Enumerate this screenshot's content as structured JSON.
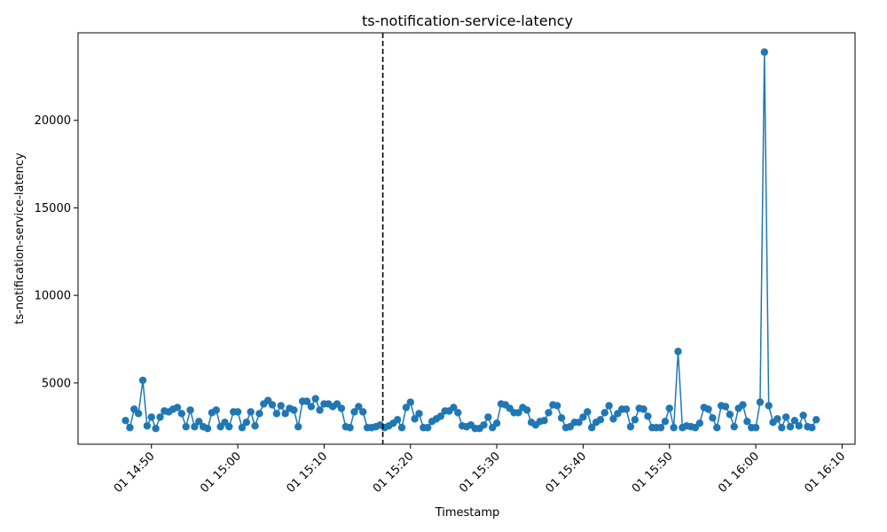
{
  "chart_data": {
    "type": "line",
    "title": "ts-notification-service-latency",
    "xlabel": "Timestamp",
    "ylabel": "ts-notification-service-latency",
    "ylim": [
      1500,
      25000
    ],
    "xlim": [
      "14:41.5",
      "16:11.5"
    ],
    "yticks": [
      5000,
      10000,
      15000,
      20000
    ],
    "ytick_labels": [
      "5000",
      "10000",
      "15000",
      "20000"
    ],
    "xticks": [
      "14:50",
      "15:00",
      "15:10",
      "15:20",
      "15:30",
      "15:40",
      "15:50",
      "16:00",
      "16:10"
    ],
    "xtick_labels": [
      "01 14:50",
      "01 15:00",
      "01 15:10",
      "01 15:20",
      "01 15:30",
      "01 15:40",
      "01 15:50",
      "01 16:00",
      "01 16:10"
    ],
    "vline": "15:16.8",
    "series_color": "#1f77b4",
    "series": [
      {
        "x": [
          "14:47",
          "14:47.5",
          "14:48",
          "14:48.5",
          "14:49",
          "14:49.5",
          "14:50",
          "14:50.5",
          "14:51",
          "14:51.5",
          "14:52",
          "14:52.5",
          "14:53",
          "14:53.5",
          "14:54",
          "14:54.5",
          "14:55",
          "14:55.5",
          "14:56",
          "14:56.5",
          "14:57",
          "14:57.5",
          "14:58",
          "14:58.5",
          "14:59",
          "14:59.5",
          "15:00",
          "15:00.5",
          "15:01",
          "15:01.5",
          "15:02",
          "15:02.5",
          "15:03",
          "15:03.5",
          "15:04",
          "15:04.5",
          "15:05",
          "15:05.5",
          "15:06",
          "15:06.5",
          "15:07",
          "15:07.5",
          "15:08",
          "15:08.5",
          "15:09",
          "15:09.5",
          "15:10",
          "15:10.5",
          "15:11",
          "15:11.5",
          "15:12",
          "15:12.5",
          "15:13",
          "15:13.5",
          "15:14",
          "15:14.5",
          "15:15",
          "15:15.5",
          "15:16",
          "15:16.5",
          "15:17",
          "15:17.5",
          "15:18",
          "15:18.5",
          "15:19",
          "15:19.5",
          "15:20",
          "15:20.5",
          "15:21",
          "15:21.5",
          "15:22",
          "15:22.5",
          "15:23",
          "15:23.5",
          "15:24",
          "15:24.5",
          "15:25",
          "15:25.5",
          "15:26",
          "15:26.5",
          "15:27",
          "15:27.5",
          "15:28",
          "15:28.5",
          "15:29",
          "15:29.5",
          "15:30",
          "15:30.5",
          "15:31",
          "15:31.5",
          "15:32",
          "15:32.5",
          "15:33",
          "15:33.5",
          "15:34",
          "15:34.5",
          "15:35",
          "15:35.5",
          "15:36",
          "15:36.5",
          "15:37",
          "15:37.5",
          "15:38",
          "15:38.5",
          "15:39",
          "15:39.5",
          "15:40",
          "15:40.5",
          "15:41",
          "15:41.5",
          "15:42",
          "15:42.5",
          "15:43",
          "15:43.5",
          "15:44",
          "15:44.5",
          "15:45",
          "15:45.5",
          "15:46",
          "15:46.5",
          "15:47",
          "15:47.5",
          "15:48",
          "15:48.5",
          "15:49",
          "15:49.5",
          "15:50",
          "15:50.5",
          "15:51",
          "15:51.5",
          "15:52",
          "15:52.5",
          "15:53",
          "15:53.5",
          "15:54",
          "15:54.5",
          "15:55",
          "15:55.5",
          "15:56",
          "15:56.5",
          "15:57",
          "15:57.5",
          "15:58",
          "15:58.5",
          "15:59",
          "15:59.5",
          "16:00",
          "16:00.5",
          "16:01",
          "16:01.5",
          "16:02",
          "16:02.5",
          "16:03",
          "16:03.5",
          "16:04",
          "16:04.5",
          "16:05",
          "16:05.5",
          "16:06",
          "16:06.5",
          "16:07"
        ],
        "y": [
          2850,
          2450,
          3500,
          3250,
          5150,
          2550,
          3050,
          2400,
          3050,
          3400,
          3350,
          3500,
          3600,
          3250,
          2500,
          3450,
          2500,
          2800,
          2500,
          2400,
          3300,
          3450,
          2500,
          2750,
          2500,
          3350,
          3350,
          2450,
          2750,
          3350,
          2550,
          3250,
          3800,
          4000,
          3750,
          3250,
          3700,
          3250,
          3550,
          3450,
          2500,
          3950,
          3950,
          3650,
          4100,
          3450,
          3800,
          3800,
          3650,
          3800,
          3550,
          2500,
          2450,
          3350,
          3650,
          3350,
          2450,
          2450,
          2500,
          2600,
          2450,
          2550,
          2700,
          2900,
          2450,
          3600,
          3900,
          2950,
          3250,
          2450,
          2450,
          2800,
          2950,
          3100,
          3400,
          3400,
          3600,
          3300,
          2550,
          2500,
          2600,
          2400,
          2400,
          2600,
          3050,
          2450,
          2700,
          3800,
          3750,
          3550,
          3300,
          3300,
          3600,
          3450,
          2750,
          2600,
          2800,
          2850,
          3300,
          3750,
          3700,
          3000,
          2450,
          2500,
          2750,
          2750,
          3050,
          3350,
          2450,
          2750,
          2900,
          3300,
          3700,
          2950,
          3250,
          3500,
          3500,
          2500,
          2900,
          3550,
          3500,
          3100,
          2450,
          2450,
          2450,
          2800,
          3550,
          2450,
          6800,
          2450,
          2550,
          2500,
          2450,
          2700,
          3600,
          3500,
          3000,
          2450,
          3700,
          3650,
          3200,
          2500,
          3550,
          3750,
          2800,
          2450,
          2450,
          3900,
          23900,
          3700,
          2750,
          2950,
          2450,
          3050,
          2500,
          2850,
          2550,
          3150,
          2500,
          2450,
          2900
        ]
      }
    ]
  }
}
